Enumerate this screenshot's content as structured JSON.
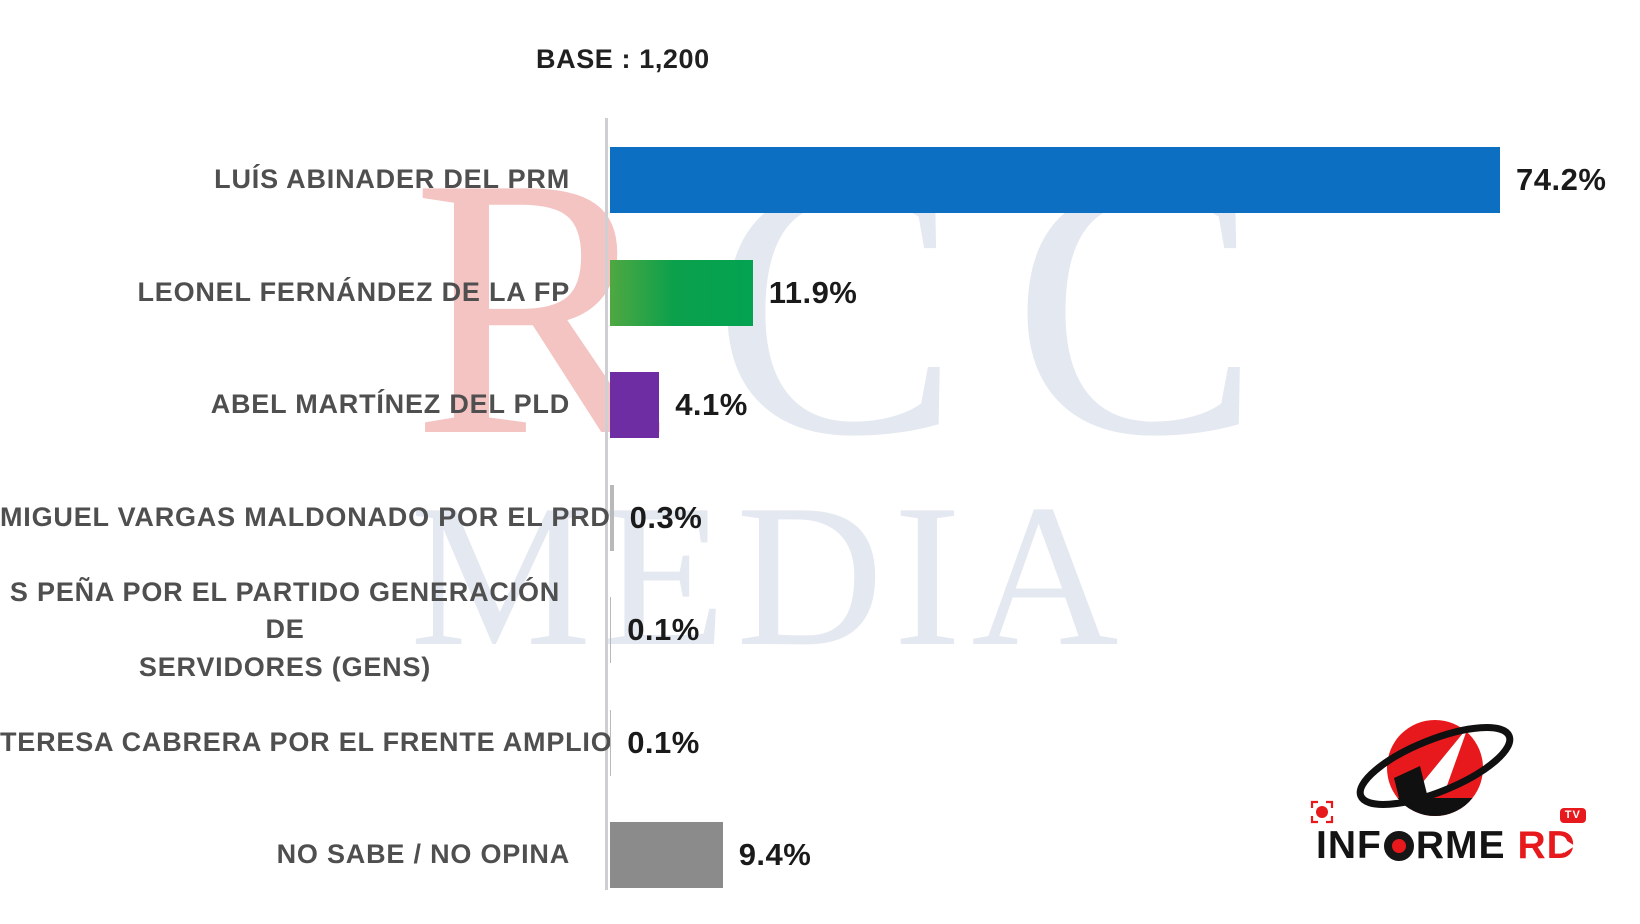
{
  "chart_data": {
    "type": "bar",
    "orientation": "horizontal",
    "title": "BASE : 1,200",
    "base_sample": "1,200",
    "unit": "%",
    "xlim": [
      0,
      80
    ],
    "grid": false,
    "legend": "none",
    "categories": [
      "LUÍS ABINADER DEL PRM",
      "LEONEL FERNÁNDEZ DE LA FP",
      "ABEL MARTÍNEZ DEL PLD",
      "MIGUEL VARGAS MALDONADO POR EL PRD",
      "S PEÑA POR EL PARTIDO GENERACIÓN DE SERVIDORES (GENS)",
      "TERESA CABRERA POR EL FRENTE AMPLIO",
      "NO SABE / NO OPINA"
    ],
    "values": [
      74.2,
      11.9,
      4.1,
      0.3,
      0.1,
      0.1,
      9.4
    ],
    "rows": [
      {
        "lines": [
          "LUÍS ABINADER DEL PRM"
        ],
        "value": 74.2,
        "display": "74.2%",
        "color": "#0d6fc1"
      },
      {
        "lines": [
          "LEONEL FERNÁNDEZ DE LA FP"
        ],
        "value": 11.9,
        "display": "11.9%",
        "color": "#0ba04c",
        "gradient": [
          "#4fa841",
          "#0ba04c",
          "#03a351"
        ]
      },
      {
        "lines": [
          "ABEL MARTÍNEZ DEL PLD"
        ],
        "value": 4.1,
        "display": "4.1%",
        "color": "#6e2da2"
      },
      {
        "lines": [
          "MIGUEL VARGAS MALDONADO POR EL PRD"
        ],
        "value": 0.3,
        "display": "0.3%",
        "color": "#b9b9b9"
      },
      {
        "lines": [
          "S PEÑA POR EL PARTIDO GENERACIÓN DE",
          "SERVIDORES (GENS)"
        ],
        "value": 0.1,
        "display": "0.1%",
        "color": "#b9b9b9"
      },
      {
        "lines": [
          "TERESA CABRERA POR EL FRENTE AMPLIO"
        ],
        "value": 0.1,
        "display": "0.1%",
        "color": "#b9b9b9"
      },
      {
        "lines": [
          "NO SABE / NO OPINA"
        ],
        "value": 9.4,
        "display": "9.4%",
        "color": "#8b8b8b"
      }
    ]
  },
  "watermark": {
    "letter_red": "R",
    "letters_gray": "CC",
    "line2": "MEDIA"
  },
  "logo": {
    "brand_part1": "INF",
    "brand_part2": "RME",
    "brand_accent": "RD",
    "tv_badge": "TV"
  },
  "colors": {
    "bar_blue": "#0d6fc1",
    "bar_green": "#0ba04c",
    "bar_purple": "#6e2da2",
    "bar_gray": "#8b8b8b",
    "axis_line": "#cfcfd3",
    "label_gray": "#4f4f4f",
    "value_black": "#1a1a1a",
    "logo_red": "#e8191c",
    "watermark_red": "#f3c4c2",
    "watermark_gray": "#e4e8f1"
  }
}
